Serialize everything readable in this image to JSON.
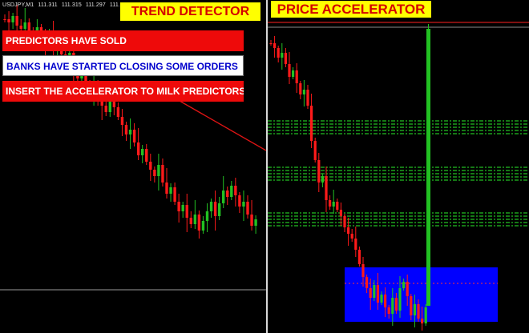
{
  "left_chart": {
    "symbol": "USDJPY,M1",
    "prices": [
      "111.311",
      "111.315",
      "111.297",
      "111.315"
    ],
    "title": "TREND DETECTOR",
    "messages": [
      "PREDICTORS HAVE SOLD",
      "BANKS HAVE STARTED CLOSING SOME ORDERS",
      "INSERT THE ACCELERATOR TO MILK PREDICTORS"
    ]
  },
  "right_chart": {
    "title": "PRICE ACCELERATOR"
  },
  "colors": {
    "background": "#000000",
    "bull_candle": "#22c022",
    "bear_candle": "#ff1a1a",
    "title_bg": "#ffff00",
    "title_text": "#d40000",
    "alert_bg": "#ee0a0a",
    "info_bg": "#ffffff",
    "info_text": "#0000cc",
    "level_lines": "#22c022",
    "zone": "#0000ff"
  }
}
